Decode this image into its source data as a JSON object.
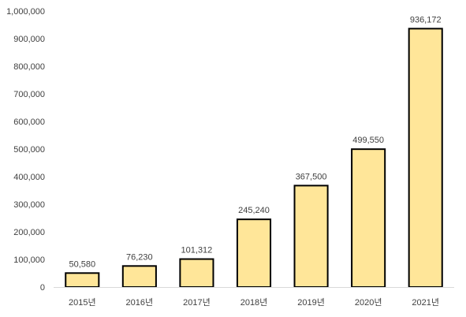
{
  "chart_data": {
    "type": "bar",
    "categories": [
      "2015년",
      "2016년",
      "2017년",
      "2018년",
      "2019년",
      "2020년",
      "2021년"
    ],
    "values": [
      50580,
      76230,
      101312,
      245240,
      367500,
      499550,
      936172
    ],
    "data_labels": [
      "50,580",
      "76,230",
      "101,312",
      "245,240",
      "367,500",
      "499,550",
      "936,172"
    ],
    "y_ticks": [
      "0",
      "100,000",
      "200,000",
      "300,000",
      "400,000",
      "500,000",
      "600,000",
      "700,000",
      "800,000",
      "900,000",
      "1,000,000"
    ],
    "ylim": [
      0,
      1000000
    ],
    "grid": false,
    "legend": "none",
    "colors": {
      "bar_fill": "#FFE699",
      "bar_stroke": "#000000",
      "axis": "#d9d9d9",
      "text": "#404040"
    }
  }
}
